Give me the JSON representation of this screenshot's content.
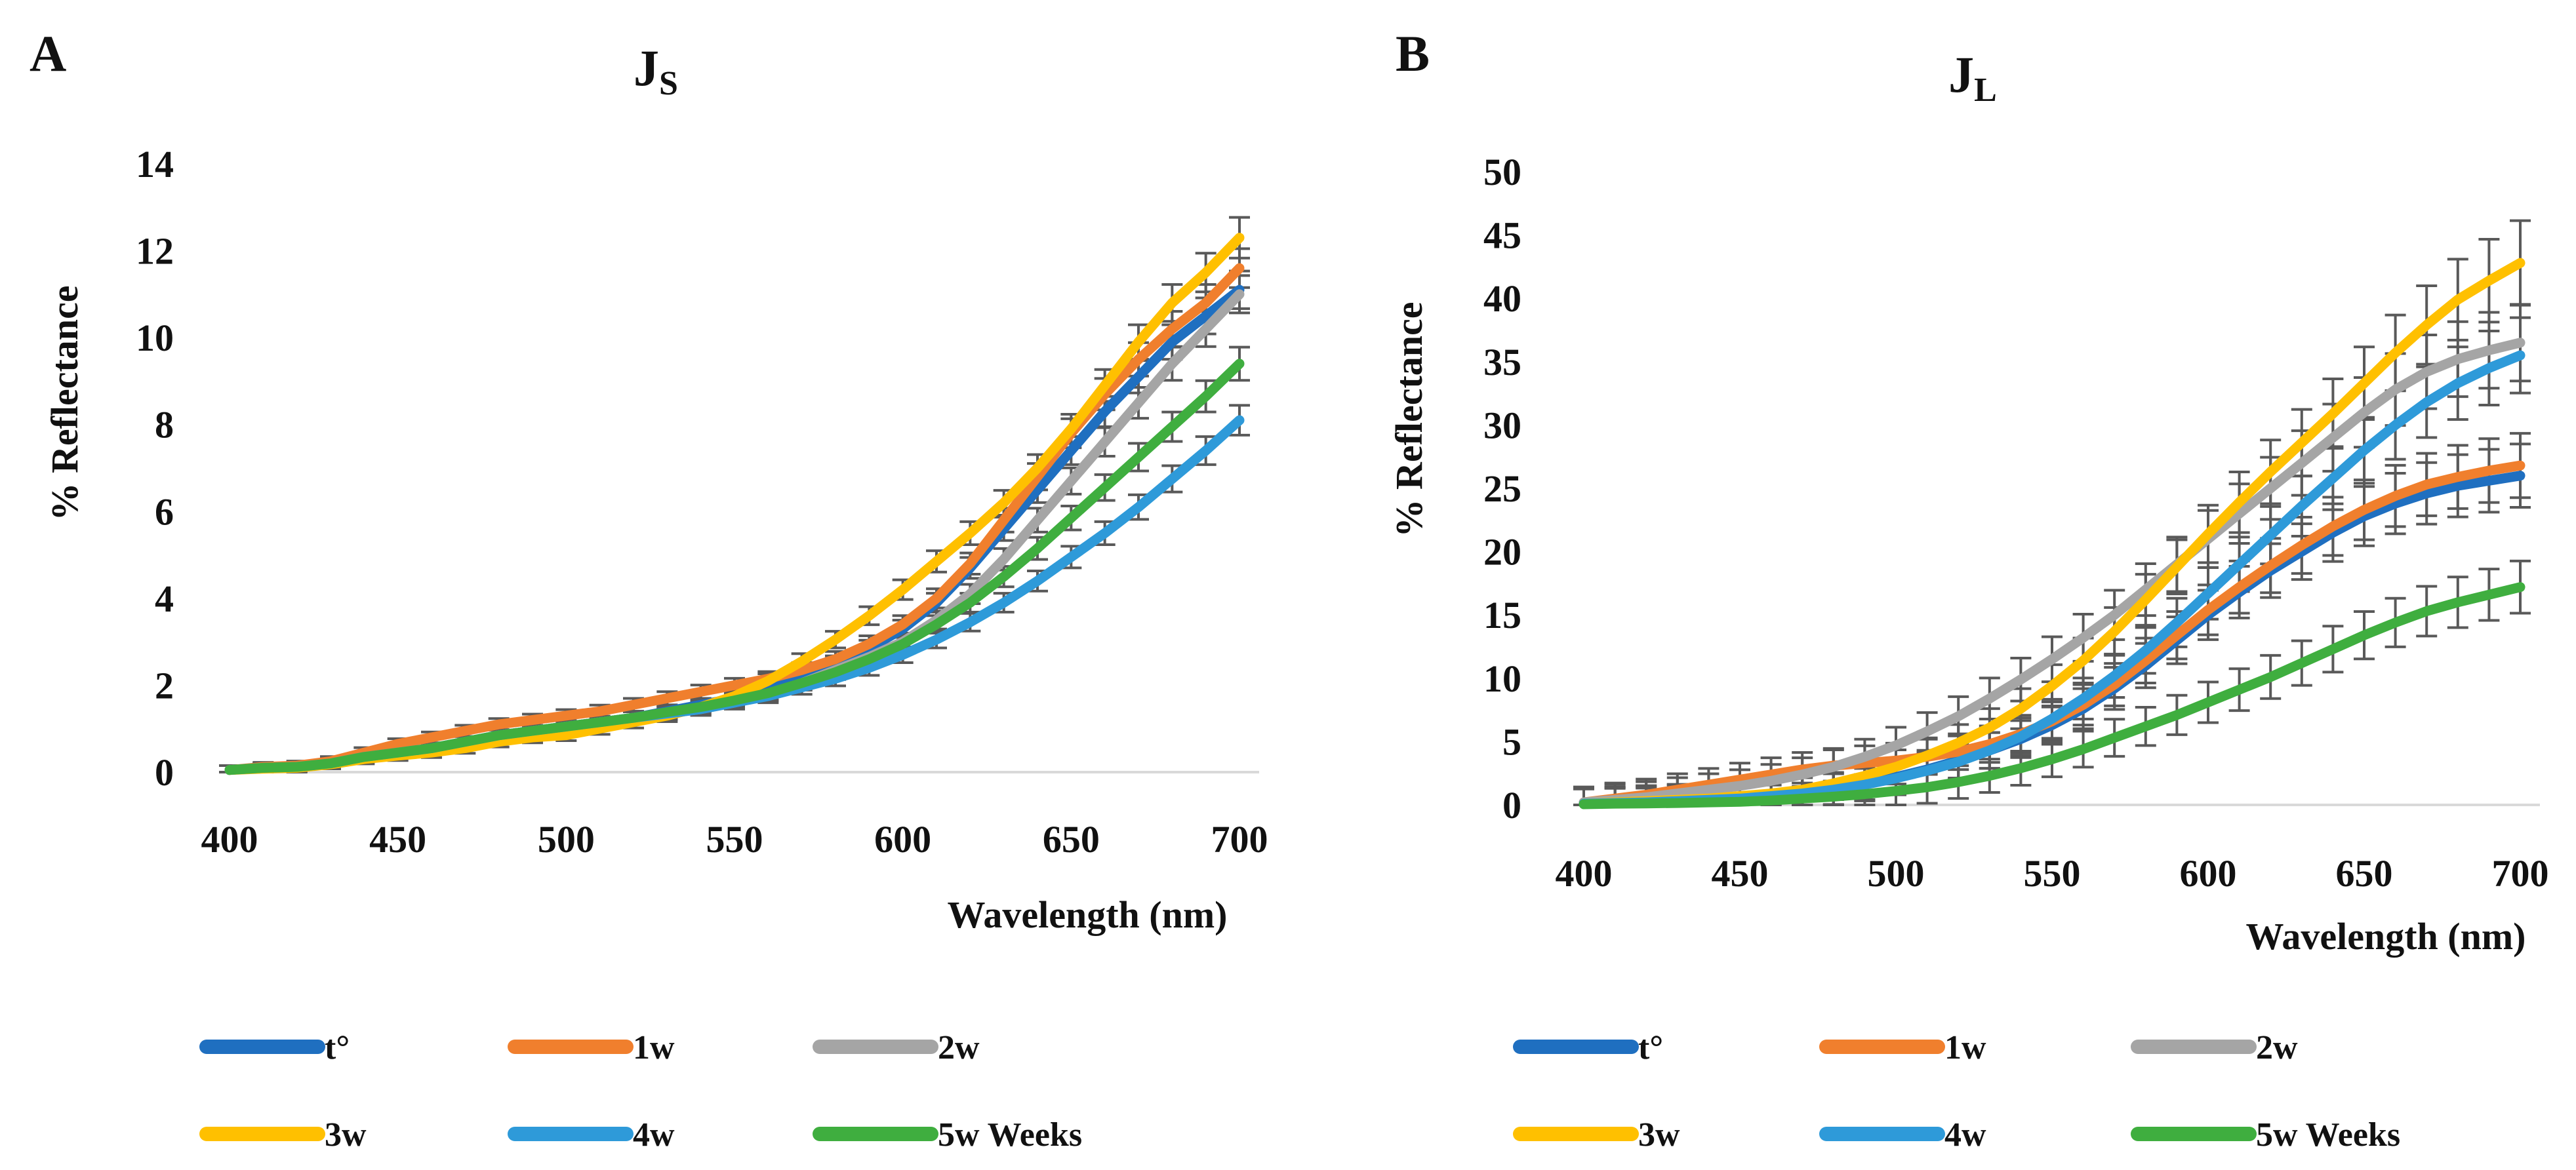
{
  "chart_data": [
    {
      "panel": "A",
      "type": "line",
      "title": "J",
      "title_subscript": "S",
      "xlabel": "Wavelength  (nm)",
      "ylabel": "% Reflectance",
      "xlim": [
        400,
        700
      ],
      "ylim": [
        0,
        14
      ],
      "x_ticks": [
        400,
        450,
        500,
        550,
        600,
        650,
        700
      ],
      "y_ticks": [
        0,
        2,
        4,
        6,
        8,
        10,
        12,
        14
      ],
      "x": [
        400,
        410,
        420,
        430,
        440,
        450,
        460,
        470,
        480,
        490,
        500,
        510,
        520,
        530,
        540,
        550,
        560,
        570,
        580,
        590,
        600,
        610,
        620,
        630,
        640,
        650,
        660,
        670,
        680,
        690,
        700
      ],
      "series": [
        {
          "name": "t°",
          "color": "#1f6fc0",
          "values": [
            0.05,
            0.1,
            0.12,
            0.2,
            0.35,
            0.45,
            0.55,
            0.7,
            0.85,
            0.95,
            1.05,
            1.15,
            1.25,
            1.4,
            1.55,
            1.7,
            1.95,
            2.2,
            2.5,
            2.85,
            3.3,
            3.9,
            4.7,
            5.6,
            6.5,
            7.4,
            8.3,
            9.1,
            9.9,
            10.5,
            11.1
          ]
        },
        {
          "name": "1w",
          "color": "#f07f2d",
          "values": [
            0.05,
            0.12,
            0.15,
            0.25,
            0.45,
            0.65,
            0.8,
            0.95,
            1.1,
            1.2,
            1.3,
            1.4,
            1.55,
            1.7,
            1.85,
            2.0,
            2.15,
            2.35,
            2.6,
            2.95,
            3.4,
            4.0,
            4.8,
            5.8,
            6.8,
            7.8,
            8.7,
            9.5,
            10.2,
            10.8,
            11.6
          ]
        },
        {
          "name": "2w",
          "color": "#a5a5a5",
          "values": [
            0.05,
            0.1,
            0.12,
            0.2,
            0.35,
            0.45,
            0.55,
            0.7,
            0.85,
            0.95,
            1.05,
            1.15,
            1.25,
            1.35,
            1.45,
            1.6,
            1.8,
            2.05,
            2.35,
            2.65,
            3.0,
            3.5,
            4.1,
            4.9,
            5.8,
            6.7,
            7.6,
            8.5,
            9.4,
            10.2,
            11.0
          ]
        },
        {
          "name": "3w",
          "color": "#ffc000",
          "values": [
            0.05,
            0.08,
            0.1,
            0.18,
            0.3,
            0.38,
            0.45,
            0.55,
            0.7,
            0.8,
            0.85,
            1.0,
            1.15,
            1.3,
            1.5,
            1.75,
            2.1,
            2.55,
            3.05,
            3.6,
            4.2,
            4.85,
            5.5,
            6.2,
            7.0,
            7.9,
            8.9,
            9.9,
            10.8,
            11.5,
            12.3
          ]
        },
        {
          "name": "4w",
          "color": "#2e9ad9",
          "values": [
            0.05,
            0.1,
            0.12,
            0.2,
            0.35,
            0.45,
            0.55,
            0.7,
            0.85,
            0.95,
            1.05,
            1.15,
            1.25,
            1.35,
            1.45,
            1.6,
            1.75,
            1.95,
            2.15,
            2.4,
            2.7,
            3.05,
            3.45,
            3.9,
            4.4,
            4.95,
            5.5,
            6.1,
            6.75,
            7.4,
            8.1
          ]
        },
        {
          "name": "5w Weeks",
          "color": "#3fae3f",
          "values": [
            0.05,
            0.1,
            0.12,
            0.2,
            0.35,
            0.45,
            0.55,
            0.7,
            0.85,
            0.95,
            1.05,
            1.15,
            1.25,
            1.38,
            1.5,
            1.65,
            1.82,
            2.05,
            2.3,
            2.6,
            2.95,
            3.4,
            3.9,
            4.5,
            5.15,
            5.85,
            6.55,
            7.25,
            7.95,
            8.65,
            9.4
          ]
        }
      ]
    },
    {
      "panel": "B",
      "type": "line",
      "title": "J",
      "title_subscript": "L",
      "xlabel": "Wavelength (nm)",
      "ylabel": "% Reflectance",
      "xlim": [
        400,
        700
      ],
      "ylim": [
        0,
        50
      ],
      "x_ticks": [
        400,
        450,
        500,
        550,
        600,
        650,
        700
      ],
      "y_ticks": [
        0,
        5,
        10,
        15,
        20,
        25,
        30,
        35,
        40,
        45,
        50
      ],
      "x": [
        400,
        410,
        420,
        430,
        440,
        450,
        460,
        470,
        480,
        490,
        500,
        510,
        520,
        530,
        540,
        550,
        560,
        570,
        580,
        590,
        600,
        610,
        620,
        630,
        640,
        650,
        660,
        670,
        680,
        690,
        700
      ],
      "series": [
        {
          "name": "t°",
          "color": "#1f6fc0",
          "values": [
            0.1,
            0.2,
            0.3,
            0.4,
            0.5,
            0.6,
            0.8,
            1.0,
            1.3,
            1.7,
            2.2,
            2.8,
            3.5,
            4.3,
            5.2,
            6.3,
            7.6,
            9.2,
            11.0,
            13.0,
            15.0,
            16.8,
            18.5,
            20.0,
            21.5,
            22.8,
            23.8,
            24.6,
            25.2,
            25.6,
            26.0
          ]
        },
        {
          "name": "1w",
          "color": "#f07f2d",
          "values": [
            0.2,
            0.5,
            0.8,
            1.2,
            1.6,
            2.0,
            2.4,
            2.8,
            3.1,
            3.3,
            3.5,
            3.8,
            4.2,
            4.8,
            5.6,
            6.6,
            7.9,
            9.5,
            11.4,
            13.4,
            15.4,
            17.2,
            18.9,
            20.5,
            22.0,
            23.3,
            24.4,
            25.3,
            25.9,
            26.4,
            26.8
          ]
        },
        {
          "name": "2w",
          "color": "#a5a5a5",
          "values": [
            0.2,
            0.4,
            0.6,
            0.9,
            1.2,
            1.5,
            1.9,
            2.4,
            3.0,
            3.8,
            4.7,
            5.8,
            7.0,
            8.4,
            9.9,
            11.5,
            13.2,
            15.0,
            17.0,
            19.0,
            21.0,
            23.0,
            25.0,
            27.0,
            29.0,
            31.0,
            32.8,
            34.2,
            35.2,
            35.9,
            36.5
          ]
        },
        {
          "name": "3w",
          "color": "#ffc000",
          "values": [
            0.1,
            0.2,
            0.3,
            0.4,
            0.5,
            0.7,
            0.9,
            1.2,
            1.7,
            2.3,
            3.0,
            3.9,
            4.9,
            6.1,
            7.6,
            9.4,
            11.4,
            13.7,
            16.2,
            18.8,
            21.4,
            23.9,
            26.3,
            28.6,
            30.9,
            33.3,
            35.7,
            37.9,
            39.9,
            41.4,
            42.8
          ]
        },
        {
          "name": "4w",
          "color": "#2e9ad9",
          "values": [
            0.1,
            0.15,
            0.2,
            0.3,
            0.4,
            0.5,
            0.7,
            0.9,
            1.2,
            1.6,
            2.1,
            2.7,
            3.4,
            4.3,
            5.4,
            6.8,
            8.4,
            10.2,
            12.2,
            14.4,
            16.7,
            19.0,
            21.3,
            23.6,
            25.8,
            28.0,
            30.0,
            31.8,
            33.3,
            34.5,
            35.5
          ]
        },
        {
          "name": "5w Weeks",
          "color": "#3fae3f",
          "values": [
            0.05,
            0.1,
            0.12,
            0.15,
            0.2,
            0.25,
            0.35,
            0.5,
            0.65,
            0.85,
            1.1,
            1.4,
            1.8,
            2.3,
            2.9,
            3.6,
            4.4,
            5.3,
            6.2,
            7.1,
            8.1,
            9.1,
            10.1,
            11.2,
            12.3,
            13.4,
            14.4,
            15.3,
            16.0,
            16.6,
            17.2
          ]
        }
      ]
    }
  ]
}
